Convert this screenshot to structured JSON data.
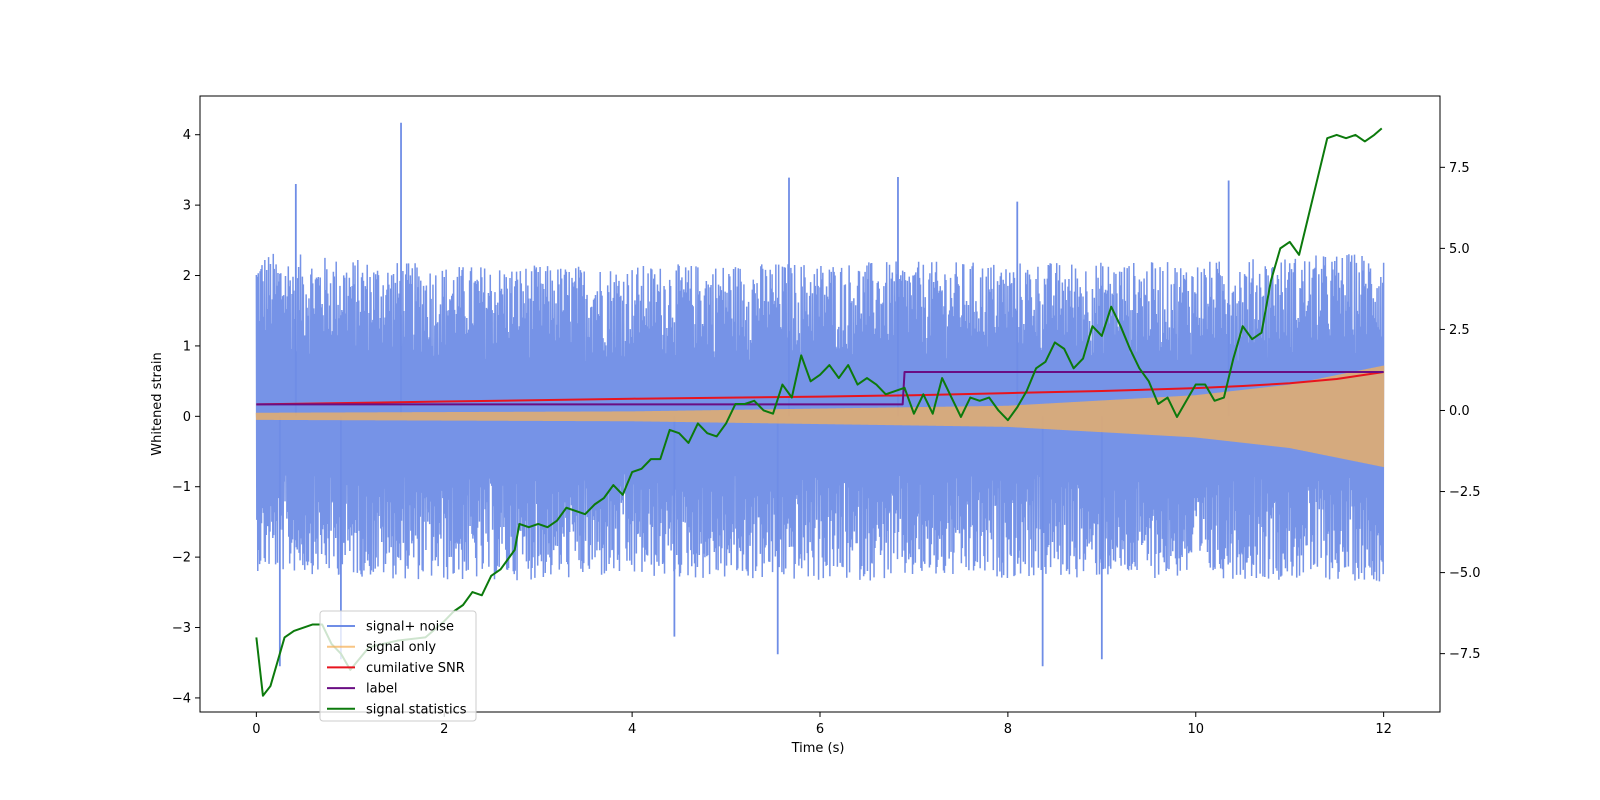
{
  "chart_data": {
    "type": "line",
    "title": "",
    "xlabel": "Time (s)",
    "ylabel": "Whitened strain",
    "y2label": "",
    "xlim": [
      -0.6,
      12.6
    ],
    "ylim": [
      -4.2,
      4.55
    ],
    "y2lim": [
      -9.3,
      9.7
    ],
    "xticks": [
      0,
      2,
      4,
      6,
      8,
      10,
      12
    ],
    "yticks": [
      -4,
      -3,
      -2,
      -1,
      0,
      1,
      2,
      3,
      4
    ],
    "y2ticks": [
      -7.5,
      -5.0,
      -2.5,
      0.0,
      2.5,
      5.0,
      7.5
    ],
    "grid": false,
    "legend_position": "lower-left",
    "series": [
      {
        "name": "signal+ noise",
        "color": "#6f8de6",
        "axis": "left",
        "kind": "noisy-band",
        "x_range": [
          0,
          12
        ],
        "envelope_upper": [
          [
            0,
            2.35
          ],
          [
            2,
            2.15
          ],
          [
            4,
            2.15
          ],
          [
            6,
            2.2
          ],
          [
            8,
            2.2
          ],
          [
            10,
            2.2
          ],
          [
            12,
            2.35
          ]
        ],
        "envelope_lower": [
          [
            0,
            -2.2
          ],
          [
            2,
            -2.35
          ],
          [
            4,
            -2.3
          ],
          [
            6,
            -2.35
          ],
          [
            8,
            -2.3
          ],
          [
            10,
            -2.3
          ],
          [
            12,
            -2.35
          ]
        ],
        "peaks": [
          [
            1.54,
            4.17
          ],
          [
            0.42,
            3.3
          ],
          [
            5.67,
            3.39
          ],
          [
            6.83,
            3.4
          ],
          [
            10.35,
            3.35
          ],
          [
            8.1,
            3.05
          ],
          [
            0.9,
            -3.45
          ],
          [
            8.37,
            -3.55
          ],
          [
            9.0,
            -3.45
          ],
          [
            5.55,
            -3.38
          ],
          [
            0.25,
            -3.55
          ],
          [
            4.45,
            -3.13
          ]
        ]
      },
      {
        "name": "signal only",
        "color": "#f5b25b",
        "axis": "left",
        "kind": "chirp",
        "amplitude": [
          [
            0,
            0.05
          ],
          [
            4,
            0.07
          ],
          [
            8,
            0.15
          ],
          [
            10,
            0.3
          ],
          [
            11,
            0.45
          ],
          [
            12,
            0.72
          ]
        ]
      },
      {
        "name": "cumilative SNR",
        "color": "#e8141e",
        "axis": "left",
        "x": [
          0,
          2,
          4,
          6,
          7,
          8,
          9,
          10,
          10.5,
          11,
          11.5,
          12
        ],
        "y": [
          0.17,
          0.21,
          0.25,
          0.28,
          0.3,
          0.33,
          0.36,
          0.4,
          0.43,
          0.47,
          0.53,
          0.63
        ]
      },
      {
        "name": "label",
        "color": "#6a0d83",
        "axis": "left",
        "x": [
          0,
          6.88,
          6.9,
          12
        ],
        "y": [
          0.17,
          0.17,
          0.63,
          0.63
        ]
      },
      {
        "name": "signal statistics",
        "color": "#0c7a0c",
        "axis": "right",
        "x": [
          0,
          0.07,
          0.15,
          0.3,
          0.4,
          0.5,
          0.6,
          0.7,
          0.8,
          0.9,
          1.0,
          1.2,
          1.5,
          1.8,
          2.0,
          2.1,
          2.2,
          2.3,
          2.4,
          2.5,
          2.6,
          2.7,
          2.75,
          2.8,
          2.9,
          3.0,
          3.1,
          3.2,
          3.3,
          3.5,
          3.6,
          3.7,
          3.8,
          3.9,
          4.0,
          4.1,
          4.2,
          4.3,
          4.4,
          4.5,
          4.6,
          4.7,
          4.8,
          4.9,
          5.0,
          5.1,
          5.2,
          5.3,
          5.4,
          5.5,
          5.6,
          5.7,
          5.8,
          5.9,
          6.0,
          6.1,
          6.2,
          6.3,
          6.4,
          6.5,
          6.6,
          6.7,
          6.8,
          6.9,
          7.0,
          7.1,
          7.2,
          7.3,
          7.4,
          7.5,
          7.6,
          7.7,
          7.8,
          7.9,
          8.0,
          8.1,
          8.2,
          8.3,
          8.4,
          8.5,
          8.6,
          8.7,
          8.8,
          8.9,
          9.0,
          9.1,
          9.2,
          9.3,
          9.4,
          9.5,
          9.6,
          9.7,
          9.8,
          9.9,
          10.0,
          10.1,
          10.2,
          10.3,
          10.4,
          10.5,
          10.6,
          10.7,
          10.8,
          10.9,
          11.0,
          11.1,
          11.2,
          11.3,
          11.4,
          11.5,
          11.6,
          11.7,
          11.8,
          11.9,
          11.98
        ],
        "y": [
          -7.0,
          -8.8,
          -8.5,
          -7.0,
          -6.8,
          -6.7,
          -6.6,
          -6.6,
          -7.2,
          -7.5,
          -8.0,
          -7.3,
          -7.1,
          -7.0,
          -6.5,
          -6.2,
          -6.0,
          -5.6,
          -5.7,
          -5.1,
          -4.9,
          -4.5,
          -4.3,
          -3.5,
          -3.6,
          -3.5,
          -3.6,
          -3.4,
          -3.0,
          -3.2,
          -2.9,
          -2.7,
          -2.3,
          -2.6,
          -1.9,
          -1.8,
          -1.5,
          -1.5,
          -0.6,
          -0.7,
          -1.0,
          -0.4,
          -0.7,
          -0.8,
          -0.4,
          0.2,
          0.2,
          0.3,
          0.0,
          -0.1,
          0.8,
          0.4,
          1.7,
          0.9,
          1.1,
          1.4,
          1.0,
          1.4,
          0.8,
          1.0,
          0.8,
          0.5,
          0.6,
          0.7,
          -0.1,
          0.5,
          -0.1,
          1.0,
          0.4,
          -0.2,
          0.4,
          0.3,
          0.4,
          0.0,
          -0.3,
          0.1,
          0.6,
          1.3,
          1.5,
          2.1,
          1.9,
          1.3,
          1.6,
          2.6,
          2.3,
          3.2,
          2.6,
          1.9,
          1.3,
          0.9,
          0.2,
          0.4,
          -0.2,
          0.3,
          0.8,
          0.8,
          0.3,
          0.4,
          1.6,
          2.6,
          2.2,
          2.4,
          4.0,
          5.0,
          5.2,
          4.8,
          6.0,
          7.2,
          8.4,
          8.5,
          8.4,
          8.5,
          8.3,
          8.5,
          8.7
        ]
      }
    ]
  }
}
